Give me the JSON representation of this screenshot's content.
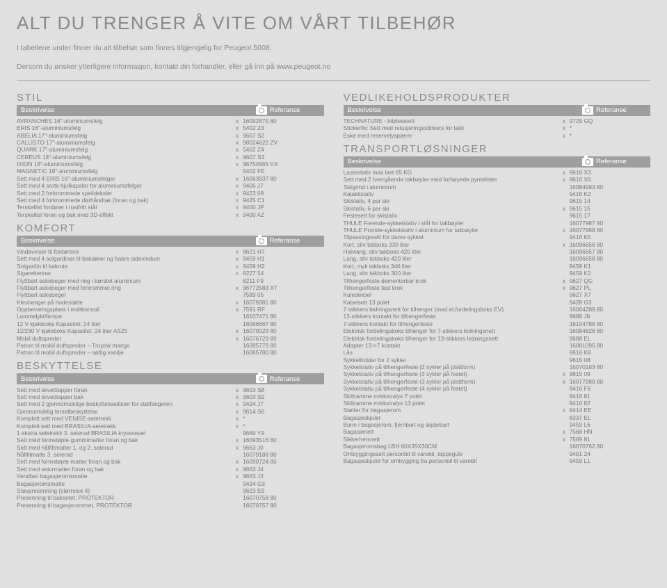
{
  "title": "ALT DU TRENGER Å VITE OM VÅRT TILBEHØR",
  "intro1": "I tabellene under finner du alt tilbehør som finnes tilgjengelig for Peugeot 5008.",
  "intro2": "Dersom du ønsker ytterligere informasjon, kontakt din forhandler, eller gå inn på www.peugeot.no",
  "header_desc": "Beskrivelse",
  "header_ref": "Referanse",
  "sections": {
    "stil": {
      "title": "STIL",
      "rows": [
        [
          "AVRANCHES 16\"-aluminiumsfelg",
          "x",
          "16092875 80"
        ],
        [
          "ERIS 16\"-aluminiumsfelg",
          "x",
          "5402 Z3"
        ],
        [
          "ABELIA 17\"-aluminiumsfelg",
          "x",
          "9607 S2"
        ],
        [
          "CALLISTO 17\"-aluminiumsfelg",
          "x",
          "98024622 ZV"
        ],
        [
          "QUARK 17\"-aluminiumsfelg",
          "x",
          "5402 Z4"
        ],
        [
          "CEREUS 18\"-aluminiumsfelg",
          "x",
          "9607 S3"
        ],
        [
          "IXION 18\"-aluminiumsfelg",
          "x",
          "96754965 VX"
        ],
        [
          "MAGNETIC 18\"-aluminiumsfelg",
          "",
          "5402 FE"
        ],
        [
          "Sett med 4 ERIS 16\"-aluminiumsfelger",
          "x",
          "16063937 80"
        ],
        [
          "Sett med 4 sorte hjulkapsler for aluminiumsfelger",
          "x",
          "9406 J7"
        ],
        [
          "Sett med 2 forkrommede speildeksler",
          "x",
          "9423 08"
        ],
        [
          "Sett med 4 forkrommede dørhåndtak (foran og bak)",
          "x",
          "9425 C1"
        ],
        [
          "Terskellist fordører i rustfritt stål",
          "x",
          "9400 JP"
        ],
        [
          "Terskellist foran og bak med 3D-effekt",
          "x",
          "9400 AZ"
        ]
      ]
    },
    "komfort": {
      "title": "KOMFORT",
      "rows": [
        [
          "Vindavviser til fordørene",
          "x",
          "9621 H7"
        ],
        [
          "Sett med 4 solgardiner til bakdører og bakre sidevinduer",
          "x",
          "9459 H1"
        ],
        [
          "Solgardin til bakrute",
          "x",
          "9459 H2"
        ],
        [
          "Sigarettenner",
          "x",
          "8227 54"
        ],
        [
          "Flyttbart askebeger med ring i børstet aluminium",
          "",
          "8211 F9"
        ],
        [
          "Flyttbart askebeger med forkrommet ring",
          "x",
          "96772583 XT"
        ],
        [
          "Flyttbart askebeger",
          "",
          "7589 05"
        ],
        [
          "Kleshenger på hodestøtte",
          "x",
          "16079381 80"
        ],
        [
          "Oppbevaringsplass i midtkonsoll",
          "x",
          "7591 RF"
        ],
        [
          "Lommelykt/lampe",
          "",
          "16107471 80"
        ],
        [
          "12 V kjøleboks Kapasitet: 24 liter",
          "",
          "16066667 80"
        ],
        [
          "12/230 V kjøleboks Kapasitet: 24 liter AS25",
          "x",
          "16070029 80"
        ],
        [
          "Mobil duftspreder",
          "x",
          "16076729 80"
        ],
        [
          "Patron til mobil duftspreder – Tropisk mango",
          "",
          "16085779 80"
        ],
        [
          "Patron til mobil duftspreder – søtlig vanilje",
          "",
          "16085780 80"
        ]
      ]
    },
    "beskyttelse": {
      "title": "BESKYTTELSE",
      "rows": [
        [
          "Sett med skvettlapper foran",
          "x",
          "9603 S8"
        ],
        [
          "Sett med skvettlapper bak",
          "x",
          "9603 S9"
        ],
        [
          "Sett med 2 gjennomsiktige beskyttelseslister for støtfangeren",
          "x",
          "9424 J7"
        ],
        [
          "Gjennomsiktig terselbeskyttelse",
          "x",
          "9614 S6"
        ],
        [
          "Komplett sett med VENISE-setetrekk",
          "x",
          "*"
        ],
        [
          "Komplett sett med BRASILIA-setetrekk",
          "x",
          "*"
        ],
        [
          "1 ekstra setetrekk 3. seterad BRASILIA kryssvevet",
          "",
          "9669 Y9"
        ],
        [
          "Sett med formstøpte gummimatter foran og bak",
          "x",
          "16093516 80"
        ],
        [
          "Sett med nålfiltmatter 1. og 2. seterad",
          "x",
          "9663 J0"
        ],
        [
          "Nålfiltmatte 3. seterad",
          "",
          "16079188 80"
        ],
        [
          "Sett med formstøpte matter foran og bak",
          "x",
          "16090724 80"
        ],
        [
          "Sett med velurmatter foran og bak",
          "x",
          "9663 J4"
        ],
        [
          "Vendbar bagasjeromsmatte",
          "x",
          "9663 J3"
        ],
        [
          "Bagasjeromsmatte",
          "",
          "9424 G3"
        ],
        [
          "Støvpresenning (størrelse 4)",
          "",
          "9623 E9"
        ],
        [
          "Presenning til baksetet, PROTEKTOR",
          "",
          "16070758 80"
        ],
        [
          "Presenning til bagasjerommet, PROTEKTOR",
          "",
          "16070757 80"
        ]
      ]
    },
    "vedlikehold": {
      "title": "VEDLIKEHOLDSPRODUKTER",
      "rows": [
        [
          "TECHNATURE - bilpleiesett",
          "x",
          "9729 GQ"
        ],
        [
          "Stickerfix: Sett med retusjeringsstickers for lakk",
          "x",
          "*"
        ],
        [
          "Eske med reservelyspærer",
          "x",
          "*"
        ]
      ]
    },
    "transport": {
      "title": "TRANSPORTLØSNINGER",
      "rows": [
        [
          "Lastestativ max last 65 KG",
          "x",
          "9616 X3"
        ],
        [
          "Sett med 2 tverrgående takbøyler med forhøyede pyntelister",
          "x",
          "9616 X6"
        ],
        [
          "Takgrind i aluminium",
          "",
          "16084993 80"
        ],
        [
          "Kajakkstativ",
          "",
          "9416 K2"
        ],
        [
          "Skistativ, 4 par ski",
          "",
          "9615 14"
        ],
        [
          "Skistativ, 6 par ski",
          "x",
          "9615 15"
        ],
        [
          "Festesett for skistativ",
          "",
          "9615 17"
        ],
        [
          "THULE Freeride-sykkelstativ i stål for takbøyler",
          "",
          "16077987 80"
        ],
        [
          "THULE Proride-sykkelstativ i aluminium for takbøyler",
          "x",
          "16077988 80"
        ],
        [
          "Tilpassingssett for dame sykkel",
          "",
          "9416 K5"
        ],
        [
          "Kort, stiv takboks 330 liter",
          "x",
          "16096656 80"
        ],
        [
          "Halvlang, stiv takboks 420 liter",
          "",
          "16096657 80"
        ],
        [
          "Lang, stiv takboks 420 liter",
          "",
          "16096658 80"
        ],
        [
          "Kort, myk takboks 340 liter",
          "",
          "9459 K1"
        ],
        [
          "Lang, stiv takboks 300 liter",
          "",
          "9459 K2"
        ],
        [
          "Tilhengerfeste demonterbar krok",
          "x",
          "9627 QG"
        ],
        [
          "Tilhengerfeste fast krok",
          "x",
          "9627 PL"
        ],
        [
          "Kuledeksel",
          "",
          "9627 X7"
        ],
        [
          "Kabelsett 13 polet",
          "",
          "9428 G3"
        ],
        [
          "7-stikkers ledningsnett for tilhenger (med el.fordelingsboks EV)",
          "",
          "16064289 80"
        ],
        [
          "13-stikkers kontakt for tilhengerfeste",
          "",
          "9688 J6"
        ],
        [
          "7-stikkers kontakt for tilhengerfeste",
          "",
          "16104786 80"
        ],
        [
          "Elektrisk fordelingsboks tilhenger for 7-stikkers ledningsnett",
          "",
          "16084826 80"
        ],
        [
          "Elektrisk fordelingsboks tilhenger for 13-stikkers ledningsnett",
          "",
          "9688 EL"
        ],
        [
          "Adapter 13->7 kontakt",
          "",
          "16081095 80"
        ],
        [
          "Lås",
          "",
          "9616 K8"
        ],
        [
          "Sykkelholder for 2 sykler",
          "",
          "9615 08"
        ],
        [
          "Sykkelstativ på tilhengerfeste (2 sykler på plattform)",
          "",
          "16070183 80"
        ],
        [
          "Sykkelstativ på tilhengerfeste (3 sykler på festet)",
          "x",
          "9615 09"
        ],
        [
          "Sykkelstativ på tilhengerfeste (3 sykler på plattform)",
          "x",
          "16077989 80"
        ],
        [
          "Sykkelstativ på tilhengerfeste (4 sykler på festet)",
          "",
          "9416 F6"
        ],
        [
          "Skiltramme m/ekstralys 7 polet",
          "",
          "9416 81"
        ],
        [
          "Skiltramme m/ekstralys 13 polet",
          "",
          "9416 82"
        ],
        [
          "Støtter for bagasjerom",
          "x",
          "9414 EE"
        ],
        [
          "Bagasjeskjuler",
          "",
          "8337 EL"
        ],
        [
          "Bunn i bagasjerom, fjernbart og skjærbart",
          "",
          "9459 L6"
        ],
        [
          "Bagasjenett",
          "x",
          "7568 HN"
        ],
        [
          "Sikkerhetsnett",
          "x",
          "7569 81"
        ],
        [
          "Bagasjeromsbag LBH 60X35X30CM",
          "",
          "16070762 80"
        ],
        [
          "Ombyggingssett personbil til varebil, teppegulv",
          "",
          "9401 24"
        ],
        [
          "Bagasjeskjuler for ombygging fra personbil til varebil",
          "",
          "9459 L1"
        ]
      ]
    }
  }
}
